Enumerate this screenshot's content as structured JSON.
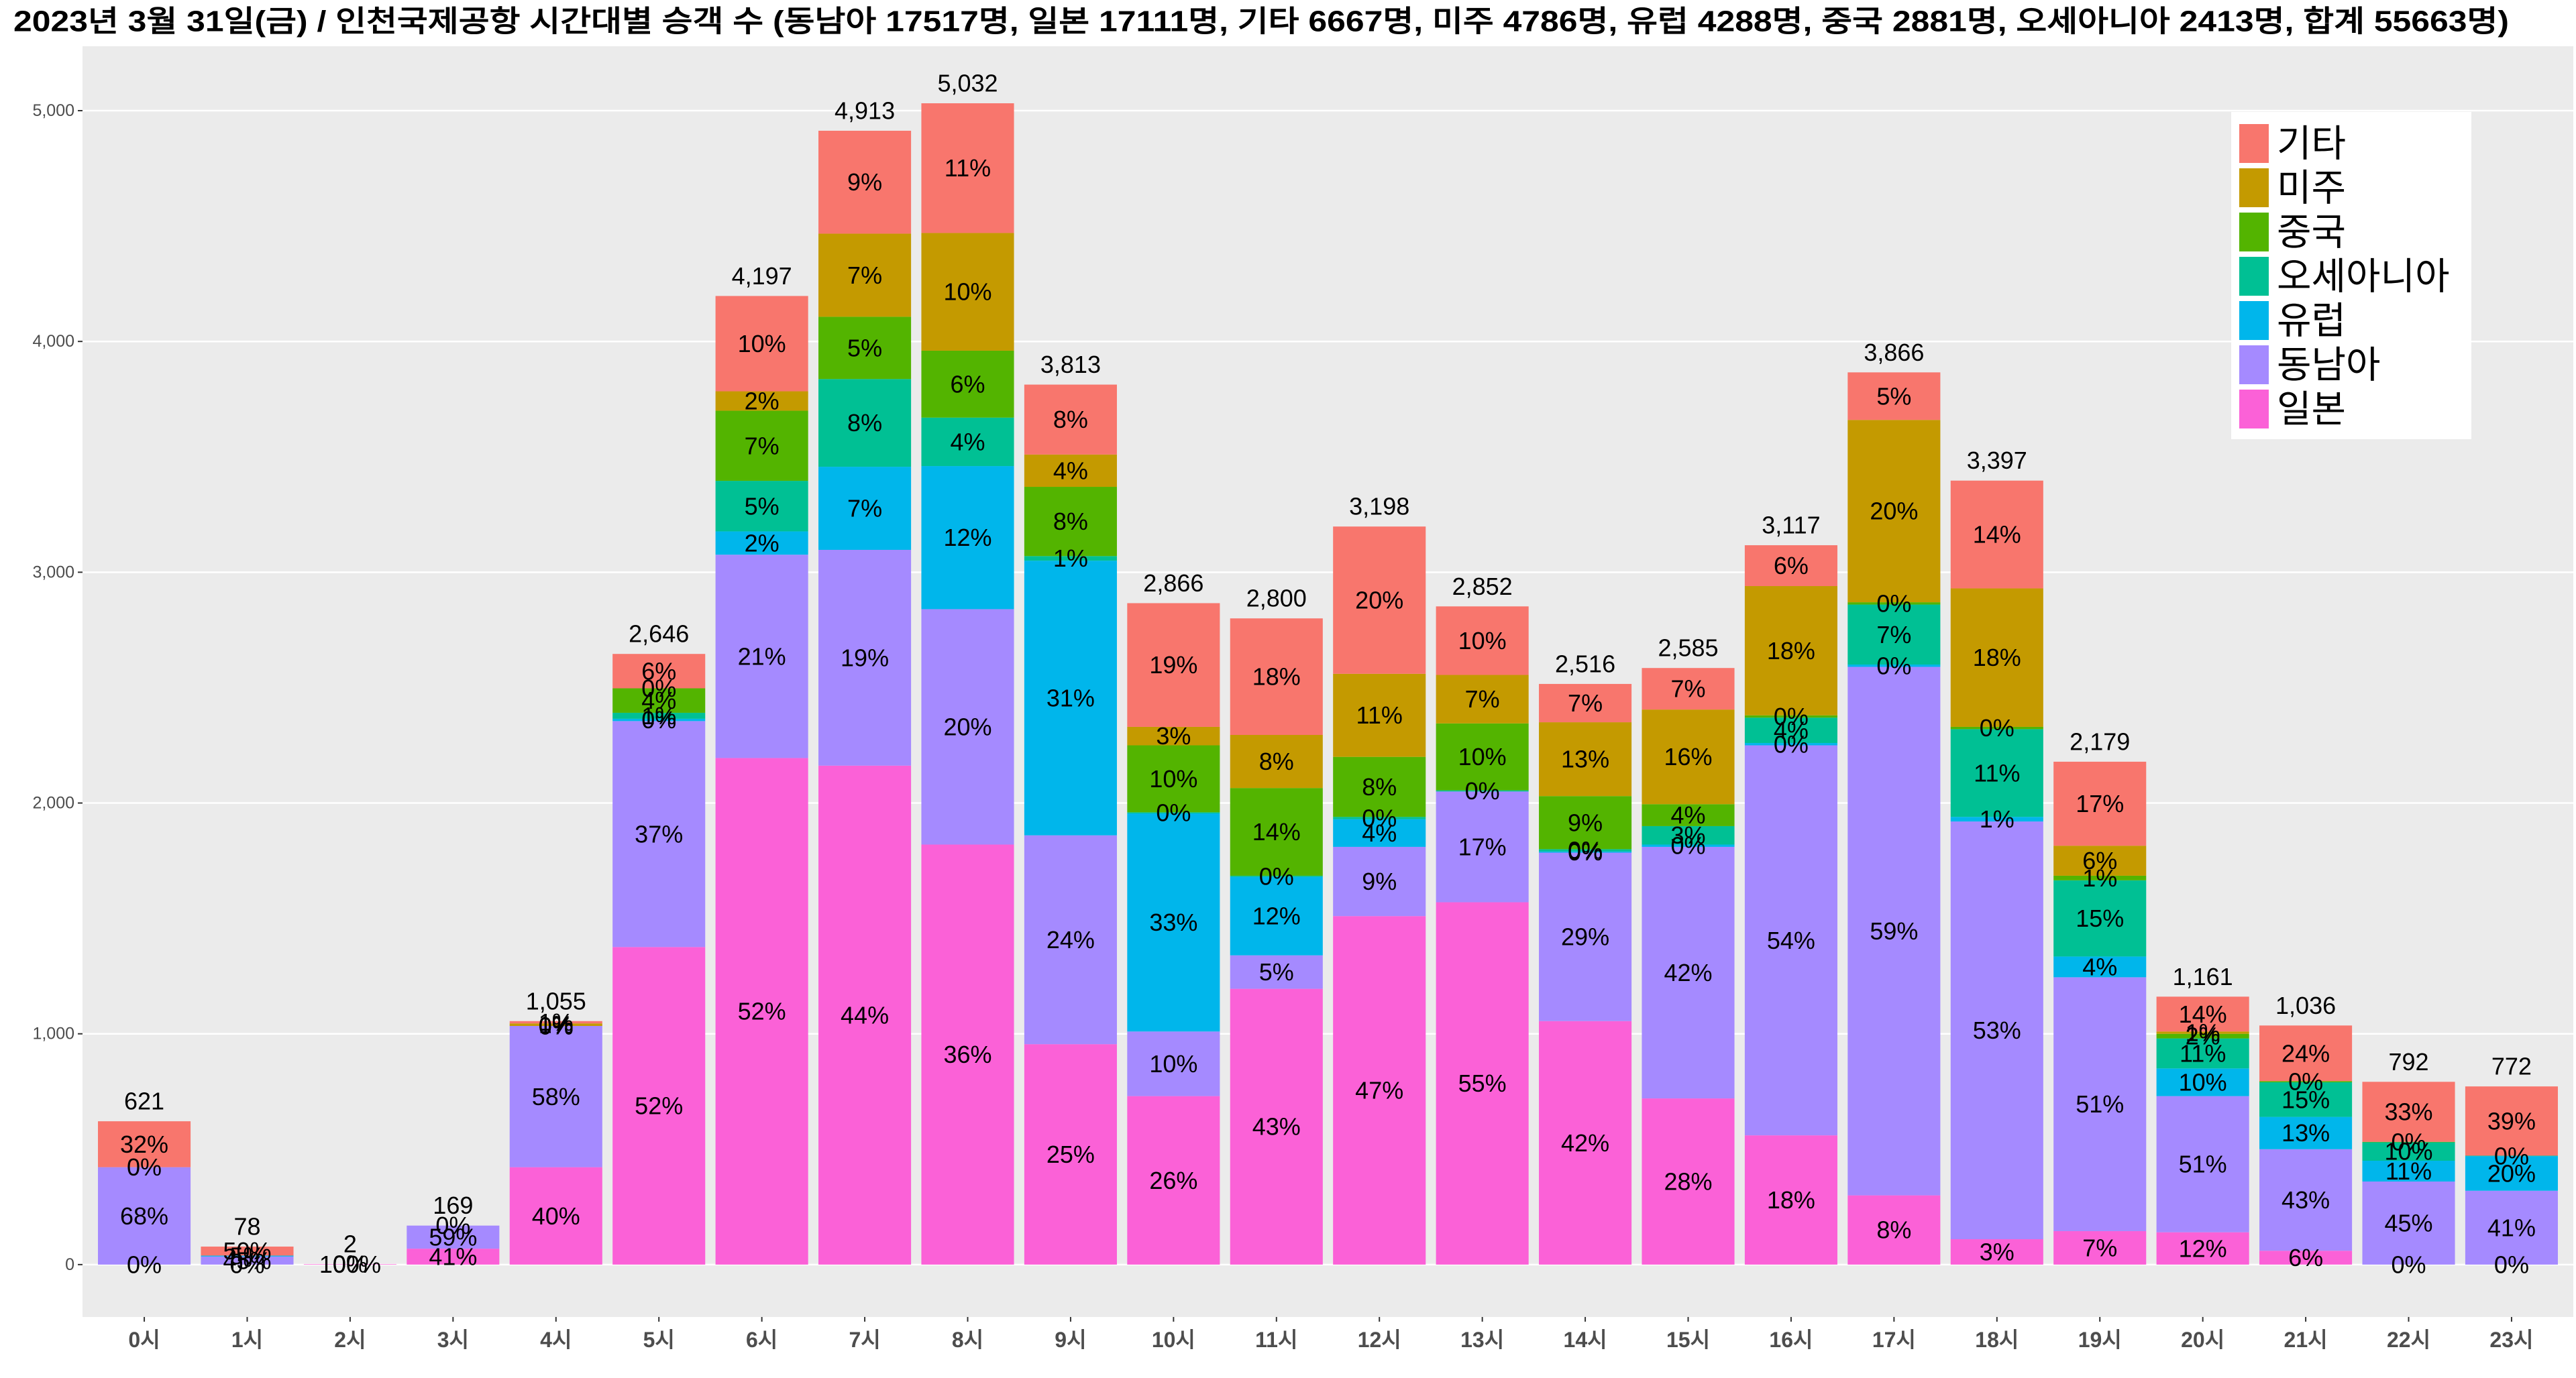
{
  "chart_data": {
    "type": "stacked_bar",
    "title": "2023년 3월 31일(금) / 인천국제공항 시간대별 승객 수 (동남아 17517명, 일본 17111명, 기타 6667명, 미주 4786명, 유럽 4288명, 중국 2881명, 오세아니아 2413명, 합계 55663명)",
    "categories": [
      "0시",
      "1시",
      "2시",
      "3시",
      "4시",
      "5시",
      "6시",
      "7시",
      "8시",
      "9시",
      "10시",
      "11시",
      "12시",
      "13시",
      "14시",
      "15시",
      "16시",
      "17시",
      "18시",
      "19시",
      "20시",
      "21시",
      "22시",
      "23시"
    ],
    "ylim": [
      -227,
      5279
    ],
    "yticks": [
      0,
      {
        "value": 1000,
        "label": "1,000"
      },
      {
        "value": 2000,
        "label": "2,000"
      },
      {
        "value": 3000,
        "label": "3,000"
      },
      {
        "value": 4000,
        "label": "4,000"
      },
      {
        "value": 5000,
        "label": "5,000"
      }
    ],
    "grid": true,
    "legend": "top-right",
    "series": [
      {
        "name": "일본",
        "color": "#FB61D7",
        "values": [
          0,
          0,
          2,
          69,
          422,
          1376,
          2195,
          2162,
          1820,
          955,
          730,
          1195,
          1510,
          1570,
          1055,
          720,
          560,
          300,
          110,
          145,
          140,
          60,
          0,
          0
        ],
        "share_labels": [
          "0%",
          "0%",
          "100%",
          "41%",
          "40%",
          "52%",
          "52%",
          "44%",
          "36%",
          "25%",
          "26%",
          "43%",
          "47%",
          "55%",
          "42%",
          "28%",
          "18%",
          "8%",
          "3%",
          "7%",
          "12%",
          "6%",
          "0%",
          "0%"
        ]
      },
      {
        "name": "동남아",
        "color": "#A58AFF",
        "values": [
          422,
          35,
          0,
          100,
          612,
          979,
          881,
          935,
          1020,
          905,
          280,
          145,
          300,
          480,
          730,
          1090,
          1690,
          2290,
          1810,
          1100,
          590,
          440,
          360,
          320
        ],
        "share_labels": [
          "68%",
          "45%",
          "0%",
          "59%",
          "58%",
          "37%",
          "21%",
          "19%",
          "20%",
          "24%",
          "10%",
          "5%",
          "9%",
          "17%",
          "29%",
          "42%",
          "54%",
          "59%",
          "53%",
          "51%",
          "51%",
          "43%",
          "45%",
          "41%"
        ]
      },
      {
        "name": "유럽",
        "color": "#00B6EB",
        "values": [
          0,
          4,
          null,
          null,
          0,
          10,
          101,
          360,
          620,
          1190,
          945,
          340,
          120,
          null,
          5,
          10,
          10,
          10,
          20,
          90,
          120,
          140,
          90,
          150
        ],
        "share_labels": [
          "0%",
          "5%",
          null,
          null,
          "0%",
          "0%",
          "2%",
          "7%",
          "12%",
          "31%",
          "33%",
          "12%",
          "4%",
          null,
          "0%",
          "0%",
          "0%",
          "0%",
          "1%",
          "4%",
          "10%",
          "13%",
          "11%",
          "20%"
        ]
      },
      {
        "name": "오세아니아",
        "color": "#00C094",
        "values": [
          null,
          null,
          null,
          null,
          0,
          26,
          219,
          380,
          210,
          20,
          5,
          5,
          10,
          5,
          10,
          80,
          110,
          260,
          380,
          330,
          130,
          150,
          80,
          2
        ],
        "share_labels": [
          null,
          null,
          null,
          null,
          "0%",
          "1%",
          "5%",
          "8%",
          "4%",
          "1%",
          "0%",
          "0%",
          "0%",
          "0%",
          "0%",
          "3%",
          "4%",
          "7%",
          "11%",
          "15%",
          "11%",
          "15%",
          "10%",
          "0%"
        ]
      },
      {
        "name": "중국",
        "color": "#53B400",
        "values": [
          null,
          null,
          null,
          null,
          0,
          106,
          304,
          270,
          290,
          300,
          290,
          380,
          260,
          290,
          230,
          95,
          10,
          10,
          10,
          20,
          20,
          5,
          2,
          null
        ],
        "share_labels": [
          null,
          null,
          null,
          null,
          "0%",
          "4%",
          "7%",
          "5%",
          "6%",
          "8%",
          "10%",
          "14%",
          "8%",
          "10%",
          "9%",
          "4%",
          "0%",
          "0%",
          "0%",
          "1%",
          "2%",
          "0%",
          "0%",
          null
        ]
      },
      {
        "name": "미주",
        "color": "#C49A00",
        "values": [
          null,
          null,
          null,
          null,
          11,
          0,
          84,
          360,
          510,
          140,
          80,
          230,
          360,
          210,
          320,
          410,
          560,
          790,
          600,
          130,
          10,
          null,
          null,
          null
        ],
        "share_labels": [
          null,
          null,
          null,
          null,
          "1%",
          "0%",
          "2%",
          "7%",
          "10%",
          "4%",
          "3%",
          "8%",
          "11%",
          "7%",
          "13%",
          "16%",
          "18%",
          "20%",
          "18%",
          "6%",
          "1%",
          null,
          null,
          null
        ]
      },
      {
        "name": "기타",
        "color": "#F8766D",
        "values": [
          199,
          39,
          null,
          0,
          10,
          149,
          413,
          446,
          562,
          303,
          536,
          505,
          638,
          297,
          166,
          180,
          177,
          206,
          467,
          364,
          151,
          241,
          260,
          300
        ],
        "share_labels": [
          "32%",
          "50%",
          null,
          "0%",
          "1%",
          "6%",
          "10%",
          "9%",
          "11%",
          "8%",
          "19%",
          "18%",
          "20%",
          "10%",
          "7%",
          "7%",
          "6%",
          "5%",
          "14%",
          "17%",
          "14%",
          "24%",
          "33%",
          "39%"
        ]
      }
    ],
    "totals": [
      621,
      78,
      2,
      169,
      1055,
      2646,
      4197,
      4913,
      5032,
      3813,
      2866,
      2800,
      3198,
      2852,
      2516,
      2585,
      3117,
      3866,
      3397,
      2179,
      1161,
      1036,
      792,
      772
    ],
    "total_labels": [
      "621",
      "78",
      "2",
      "169",
      "1,055",
      "2,646",
      "4,197",
      "4,913",
      "5,032",
      "3,813",
      "2,866",
      "2,800",
      "3,198",
      "2,852",
      "2,516",
      "2,585",
      "3,117",
      "3,866",
      "3,397",
      "2,179",
      "1,161",
      "1,036",
      "792",
      "772"
    ]
  }
}
